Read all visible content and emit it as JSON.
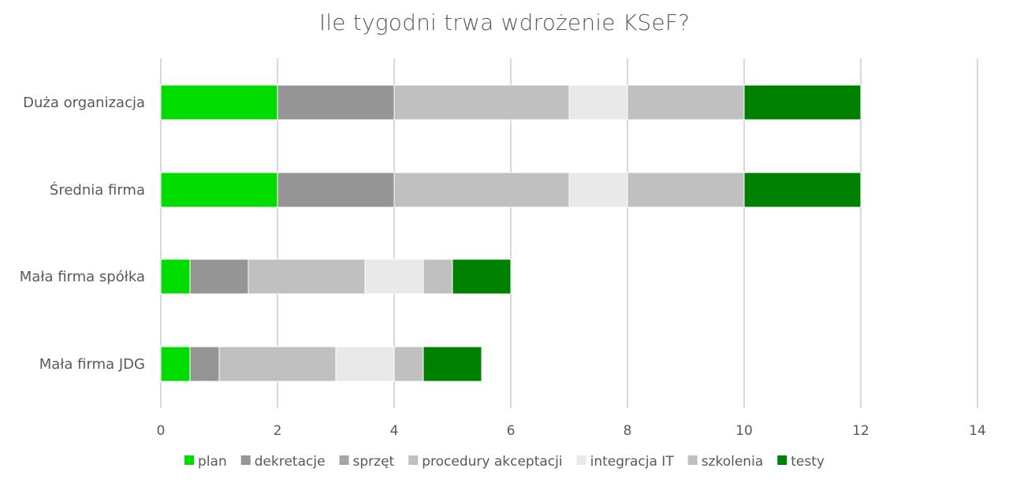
{
  "chart_data": {
    "type": "bar",
    "orientation": "horizontal",
    "stacked": true,
    "title": "Ile tygodni trwa wdrożenie KSeF?",
    "xlabel": "",
    "ylabel": "",
    "xlim": [
      0,
      14
    ],
    "x_ticks": [
      "0",
      "2",
      "4",
      "6",
      "8",
      "10",
      "12",
      "14"
    ],
    "grid": "vertical",
    "legend_position": "bottom",
    "categories": [
      "Duża organizacja",
      "Średnia firma",
      "Mała firma spółka",
      "Mała firma JDG"
    ],
    "series": [
      {
        "name": "plan",
        "color": "#00DC00",
        "values": [
          2,
          2,
          0.5,
          0.5
        ]
      },
      {
        "name": "dekretacje",
        "color": "#959595",
        "values": [
          2,
          2,
          1,
          0.5
        ]
      },
      {
        "name": "sprzęt",
        "color": "#A6A6A6",
        "values": [
          0,
          0,
          0,
          0
        ]
      },
      {
        "name": "procedury akceptacji",
        "color": "#C0C0C0",
        "values": [
          3,
          3,
          2,
          2
        ]
      },
      {
        "name": "integracja IT",
        "color": "#E9E9E9",
        "values": [
          1,
          1,
          1,
          1
        ]
      },
      {
        "name": "szkolenia",
        "color": "#C0C0C0",
        "values": [
          2,
          2,
          0.5,
          0.5
        ]
      },
      {
        "name": "testy",
        "color": "#008000",
        "values": [
          2,
          2,
          1,
          1
        ]
      }
    ]
  }
}
